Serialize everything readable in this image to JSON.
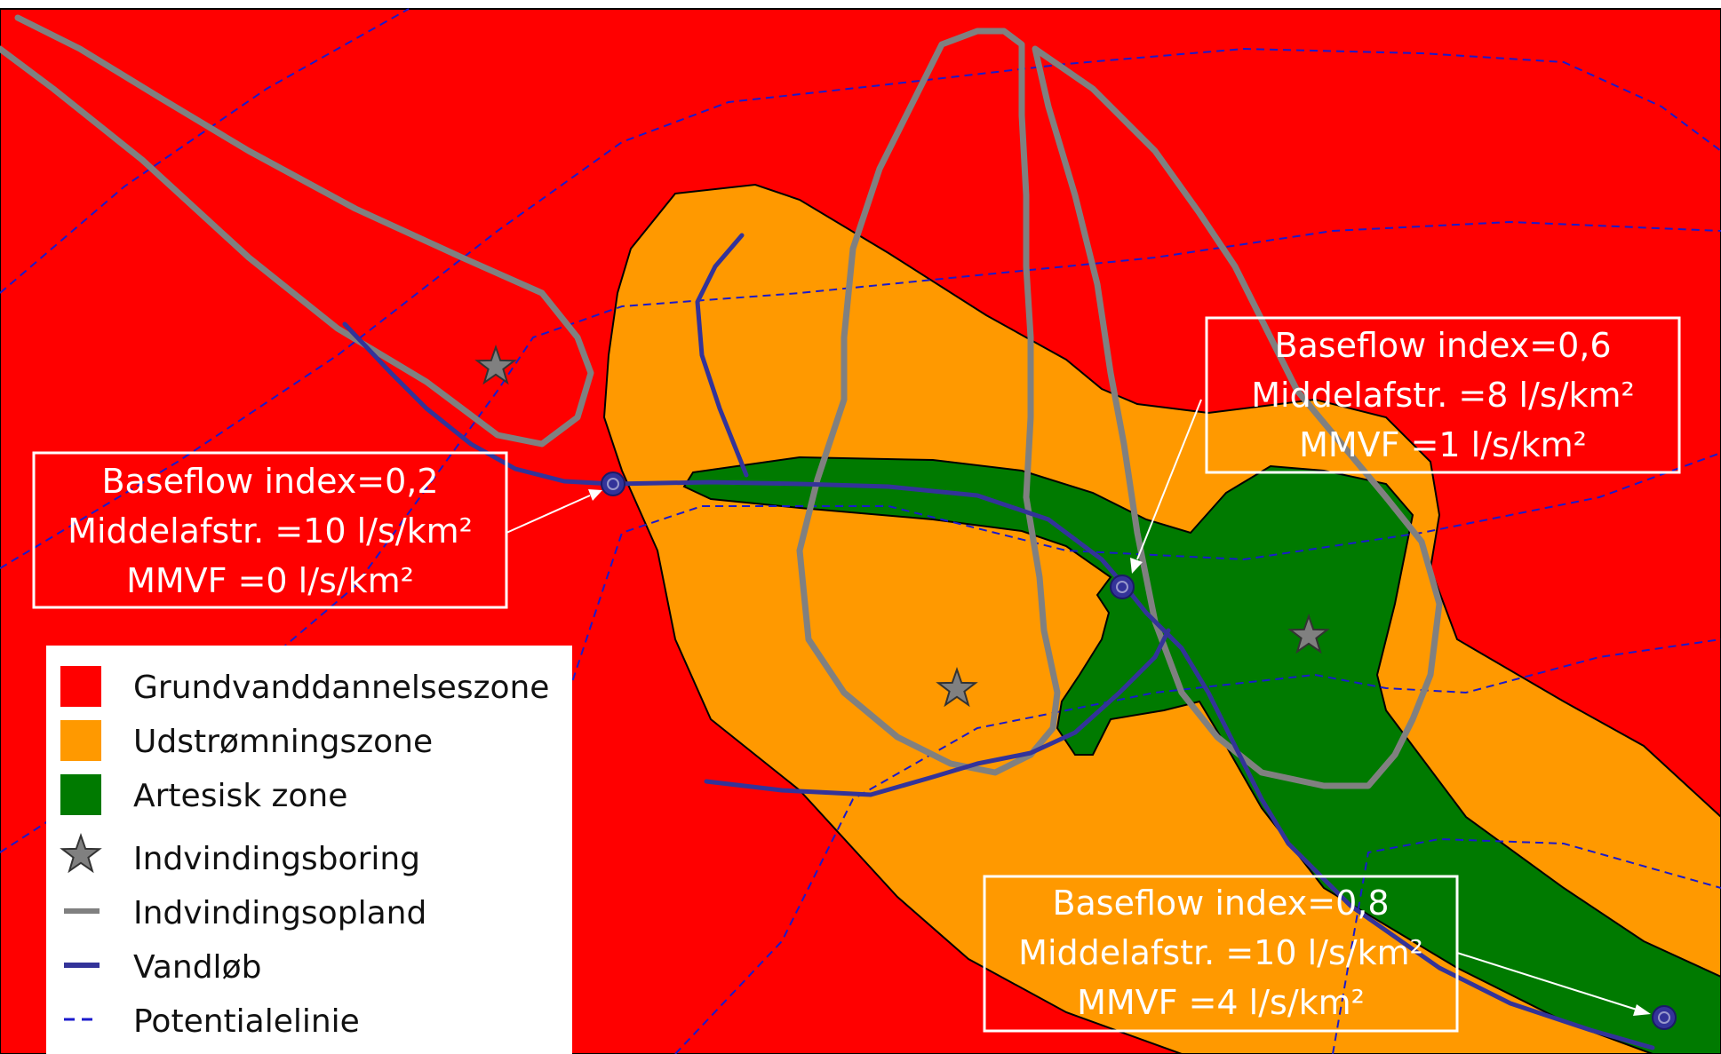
{
  "colors": {
    "recharge_zone": "#ff0000",
    "discharge_zone": "#ff9900",
    "artesian_zone": "#007a00",
    "catchment_line": "#808080",
    "stream_line": "#333399",
    "potential_line": "#1a1acc",
    "well_star": "#808080",
    "box_border": "#ffffff",
    "legend_bg": "#ffffff"
  },
  "annotations": [
    {
      "lines": [
        "Baseflow index=0,2",
        "Middelafstr. =10 l/s/km²",
        "MMVF =0 l/s/km²"
      ]
    },
    {
      "lines": [
        "Baseflow index=0,6",
        "Middelafstr. =8 l/s/km²",
        "MMVF =1 l/s/km²"
      ]
    },
    {
      "lines": [
        "Baseflow index=0,8",
        "Middelafstr. =10 l/s/km²",
        "MMVF =4 l/s/km²"
      ]
    }
  ],
  "legend": [
    {
      "label": "Grundvanddannelseszone",
      "symbol": "red-square"
    },
    {
      "label": "Udstrømningszone",
      "symbol": "orange-square"
    },
    {
      "label": "Artesisk zone",
      "symbol": "green-square"
    },
    {
      "label": "Indvindingsboring",
      "symbol": "star-icon"
    },
    {
      "label": "Indvindingsopland",
      "symbol": "grey-line"
    },
    {
      "label": "Vandløb",
      "symbol": "blue-line"
    },
    {
      "label": "Potentialelinie",
      "symbol": "dashed-line"
    }
  ]
}
